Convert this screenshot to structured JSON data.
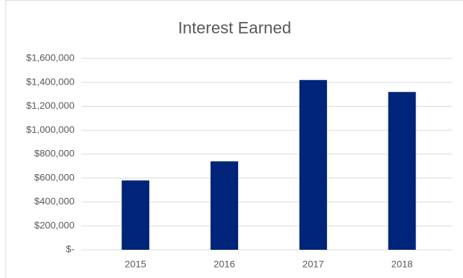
{
  "chart_data": {
    "type": "bar",
    "title": "Interest Earned",
    "categories": [
      "2015",
      "2016",
      "2017",
      "2018"
    ],
    "values": [
      580000,
      740000,
      1420000,
      1320000
    ],
    "color": "#002479",
    "ylim": [
      0,
      1600000
    ],
    "yticks": [
      {
        "value": 0,
        "label": "$-"
      },
      {
        "value": 200000,
        "label": "$200,000"
      },
      {
        "value": 400000,
        "label": "$400,000"
      },
      {
        "value": 600000,
        "label": "$600,000"
      },
      {
        "value": 800000,
        "label": "$800,000"
      },
      {
        "value": 1000000,
        "label": "$1,000,000"
      },
      {
        "value": 1200000,
        "label": "$1,200,000"
      },
      {
        "value": 1400000,
        "label": "$1,400,000"
      },
      {
        "value": 1600000,
        "label": "$1,600,000"
      }
    ],
    "grid": true
  }
}
